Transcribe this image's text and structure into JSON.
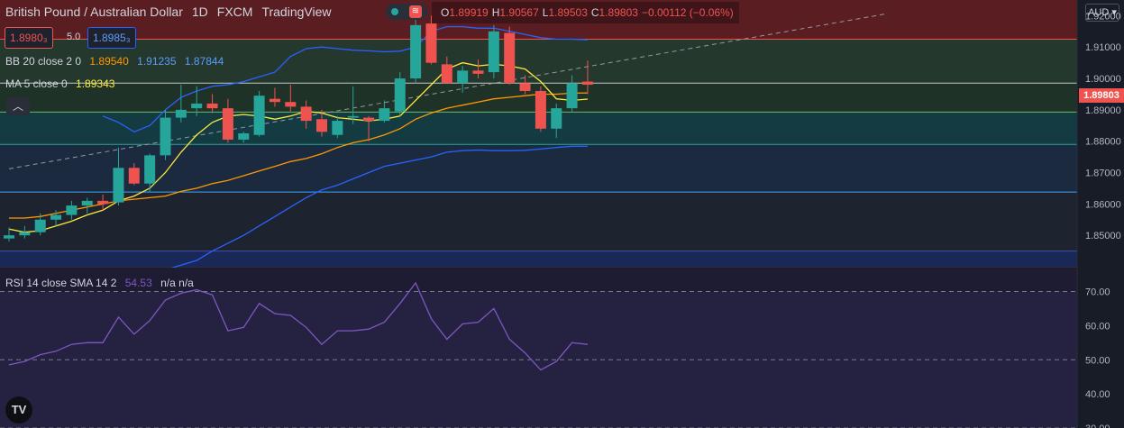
{
  "header": {
    "symbol": "British Pound / Australian Dollar",
    "interval": "1D",
    "exchange": "FXCM",
    "source": "TradingView",
    "ohlc": {
      "o_label": "O",
      "o": "1.89919",
      "h_label": "H",
      "h": "1.90567",
      "l_label": "L",
      "l": "1.89503",
      "c_label": "C",
      "c": "1.89803",
      "chg": "−0.00112 (−0.06%)"
    }
  },
  "trade": {
    "bid": "1.8980₃",
    "spread": "5.0",
    "ask": "1.8985₃"
  },
  "indicators": {
    "bb": {
      "label": "BB 20 close 2 0",
      "basis": "1.89540",
      "upper": "1.91235",
      "lower": "1.87844"
    },
    "ma": {
      "label": "MA 5 close 0",
      "value": "1.89343"
    },
    "rsi": {
      "label": "RSI 14 close SMA 14 2",
      "value": "54.53",
      "extra": "n/a n/a"
    }
  },
  "currency": "AUD",
  "last_price": "1.89803",
  "colors": {
    "up": "#26a69a",
    "down": "#ef5350",
    "bb": "#2962ff",
    "basis": "#ff9800",
    "ma": "#ffeb3b",
    "rsi": "#7e57c2"
  },
  "chart_data": {
    "type": "candlestick",
    "price_axis": {
      "min": 1.84,
      "max": 1.925,
      "ticks": [
        "1.92000",
        "1.91000",
        "1.90000",
        "1.89000",
        "1.88000",
        "1.87000",
        "1.86000",
        "1.85000"
      ]
    },
    "rsi_axis": {
      "min": 30,
      "max": 77,
      "ticks": [
        "70.00",
        "60.00",
        "50.00",
        "40.00",
        "30.00"
      ],
      "bands": [
        70,
        50,
        30
      ]
    },
    "candles": [
      {
        "o": 1.849,
        "h": 1.8525,
        "l": 1.848,
        "c": 1.85
      },
      {
        "o": 1.85,
        "h": 1.853,
        "l": 1.849,
        "c": 1.851
      },
      {
        "o": 1.851,
        "h": 1.857,
        "l": 1.85,
        "c": 1.855
      },
      {
        "o": 1.855,
        "h": 1.858,
        "l": 1.853,
        "c": 1.8565
      },
      {
        "o": 1.8565,
        "h": 1.861,
        "l": 1.855,
        "c": 1.8595
      },
      {
        "o": 1.8595,
        "h": 1.862,
        "l": 1.857,
        "c": 1.861
      },
      {
        "o": 1.861,
        "h": 1.863,
        "l": 1.858,
        "c": 1.86
      },
      {
        "o": 1.8605,
        "h": 1.878,
        "l": 1.8595,
        "c": 1.8715
      },
      {
        "o": 1.8715,
        "h": 1.873,
        "l": 1.866,
        "c": 1.8665
      },
      {
        "o": 1.8665,
        "h": 1.876,
        "l": 1.864,
        "c": 1.8755
      },
      {
        "o": 1.8755,
        "h": 1.89,
        "l": 1.874,
        "c": 1.8875
      },
      {
        "o": 1.8875,
        "h": 1.898,
        "l": 1.886,
        "c": 1.89
      },
      {
        "o": 1.8905,
        "h": 1.8975,
        "l": 1.888,
        "c": 1.892
      },
      {
        "o": 1.892,
        "h": 1.895,
        "l": 1.889,
        "c": 1.8905
      },
      {
        "o": 1.8905,
        "h": 1.8935,
        "l": 1.8795,
        "c": 1.8805
      },
      {
        "o": 1.8805,
        "h": 1.883,
        "l": 1.8795,
        "c": 1.8825
      },
      {
        "o": 1.882,
        "h": 1.896,
        "l": 1.8815,
        "c": 1.8945
      },
      {
        "o": 1.8935,
        "h": 1.897,
        "l": 1.891,
        "c": 1.8925
      },
      {
        "o": 1.8925,
        "h": 1.898,
        "l": 1.8895,
        "c": 1.891
      },
      {
        "o": 1.891,
        "h": 1.893,
        "l": 1.884,
        "c": 1.8865
      },
      {
        "o": 1.887,
        "h": 1.89,
        "l": 1.8815,
        "c": 1.883
      },
      {
        "o": 1.882,
        "h": 1.888,
        "l": 1.881,
        "c": 1.8865
      },
      {
        "o": 1.8875,
        "h": 1.8975,
        "l": 1.8855,
        "c": 1.888
      },
      {
        "o": 1.8875,
        "h": 1.888,
        "l": 1.88,
        "c": 1.8865
      },
      {
        "o": 1.8865,
        "h": 1.893,
        "l": 1.886,
        "c": 1.8905
      },
      {
        "o": 1.8895,
        "h": 1.902,
        "l": 1.888,
        "c": 1.9
      },
      {
        "o": 1.9,
        "h": 1.9215,
        "l": 1.8985,
        "c": 1.917
      },
      {
        "o": 1.9175,
        "h": 1.92,
        "l": 1.9045,
        "c": 1.905
      },
      {
        "o": 1.9045,
        "h": 1.907,
        "l": 1.899,
        "c": 1.8985
      },
      {
        "o": 1.8985,
        "h": 1.904,
        "l": 1.8955,
        "c": 1.9025
      },
      {
        "o": 1.9025,
        "h": 1.906,
        "l": 1.9,
        "c": 1.9015
      },
      {
        "o": 1.902,
        "h": 1.917,
        "l": 1.9,
        "c": 1.915
      },
      {
        "o": 1.9145,
        "h": 1.9165,
        "l": 1.898,
        "c": 1.8985
      },
      {
        "o": 1.8985,
        "h": 1.901,
        "l": 1.895,
        "c": 1.896
      },
      {
        "o": 1.896,
        "h": 1.8975,
        "l": 1.883,
        "c": 1.884
      },
      {
        "o": 1.884,
        "h": 1.892,
        "l": 1.881,
        "c": 1.8905
      },
      {
        "o": 1.8905,
        "h": 1.901,
        "l": 1.8895,
        "c": 1.8985
      },
      {
        "o": 1.899,
        "h": 1.9057,
        "l": 1.895,
        "c": 1.898
      }
    ],
    "bb_upper": [
      null,
      null,
      null,
      null,
      null,
      null,
      1.888,
      1.886,
      1.883,
      1.885,
      1.89,
      1.894,
      1.896,
      1.8975,
      1.898,
      1.899,
      1.9005,
      1.902,
      1.907,
      1.9095,
      1.91,
      1.9095,
      1.909,
      1.9088,
      1.9085,
      1.9087,
      1.91,
      1.915,
      1.9165,
      1.9165,
      1.916,
      1.916,
      1.915,
      1.914,
      1.913,
      1.9125,
      1.9125,
      1.9123
    ],
    "bb_lower": [
      null,
      null,
      null,
      null,
      null,
      null,
      1.837,
      1.836,
      1.837,
      1.8375,
      1.839,
      1.8405,
      1.842,
      1.845,
      1.8475,
      1.85,
      1.853,
      1.856,
      1.859,
      1.862,
      1.8645,
      1.866,
      1.868,
      1.87,
      1.872,
      1.873,
      1.874,
      1.875,
      1.8765,
      1.877,
      1.8772,
      1.877,
      1.877,
      1.8771,
      1.8775,
      1.878,
      1.8784,
      1.8784
    ],
    "bb_basis": [
      1.8555,
      1.8555,
      1.856,
      1.857,
      1.858,
      1.859,
      1.86,
      1.861,
      1.8615,
      1.862,
      1.8625,
      1.864,
      1.865,
      1.8665,
      1.8675,
      1.869,
      1.8705,
      1.872,
      1.8735,
      1.8745,
      1.876,
      1.878,
      1.8795,
      1.8805,
      1.882,
      1.884,
      1.887,
      1.889,
      1.8905,
      1.8915,
      1.8925,
      1.8935,
      1.894,
      1.8945,
      1.895,
      1.895,
      1.8953,
      1.8954
    ],
    "ma5": [
      1.852,
      1.851,
      1.8515,
      1.853,
      1.8545,
      1.8565,
      1.858,
      1.861,
      1.8625,
      1.865,
      1.87,
      1.8765,
      1.882,
      1.886,
      1.888,
      1.8885,
      1.888,
      1.887,
      1.888,
      1.8895,
      1.889,
      1.8875,
      1.887,
      1.8865,
      1.887,
      1.888,
      1.893,
      1.898,
      1.903,
      1.905,
      1.904,
      1.9045,
      1.904,
      1.903,
      1.899,
      1.8935,
      1.893,
      1.8934
    ],
    "rsi": [
      48.5,
      49.5,
      51.5,
      52.5,
      54.5,
      55,
      55,
      62.5,
      57.5,
      61.5,
      67.5,
      69.5,
      70.5,
      69,
      58.5,
      59.5,
      66.5,
      63.5,
      63,
      59.5,
      54.5,
      58.5,
      58.5,
      59,
      61,
      66.5,
      72.5,
      62,
      56,
      60.5,
      61,
      65,
      56,
      52,
      47,
      49.5,
      55,
      54.5
    ],
    "trendline": {
      "from": [
        0,
        1.8712
      ],
      "to": [
        56,
        1.9205
      ]
    },
    "zones": [
      {
        "from": 1.9125,
        "to": 1.925,
        "color": "#5a1e22"
      },
      {
        "from": 1.8985,
        "to": 1.9125,
        "color": "#24382e"
      },
      {
        "from": 1.8893,
        "to": 1.8985,
        "color": "#1f3228"
      },
      {
        "from": 1.879,
        "to": 1.8893,
        "color": "#143b42"
      },
      {
        "from": 1.8638,
        "to": 1.879,
        "color": "#1c2a40"
      },
      {
        "from": 1.845,
        "to": 1.8638,
        "color": "#1e2330"
      },
      {
        "from": 1.839,
        "to": 1.845,
        "color": "#1a2858"
      }
    ],
    "levels": [
      {
        "v": 1.9125,
        "color": "#ef5350"
      },
      {
        "v": 1.8985,
        "color": "#c7c7c7"
      },
      {
        "v": 1.8893,
        "color": "#66bb6a"
      },
      {
        "v": 1.879,
        "color": "#26a69a"
      },
      {
        "v": 1.8638,
        "color": "#42a5f5"
      },
      {
        "v": 1.845,
        "color": "#3f51b5"
      }
    ]
  }
}
